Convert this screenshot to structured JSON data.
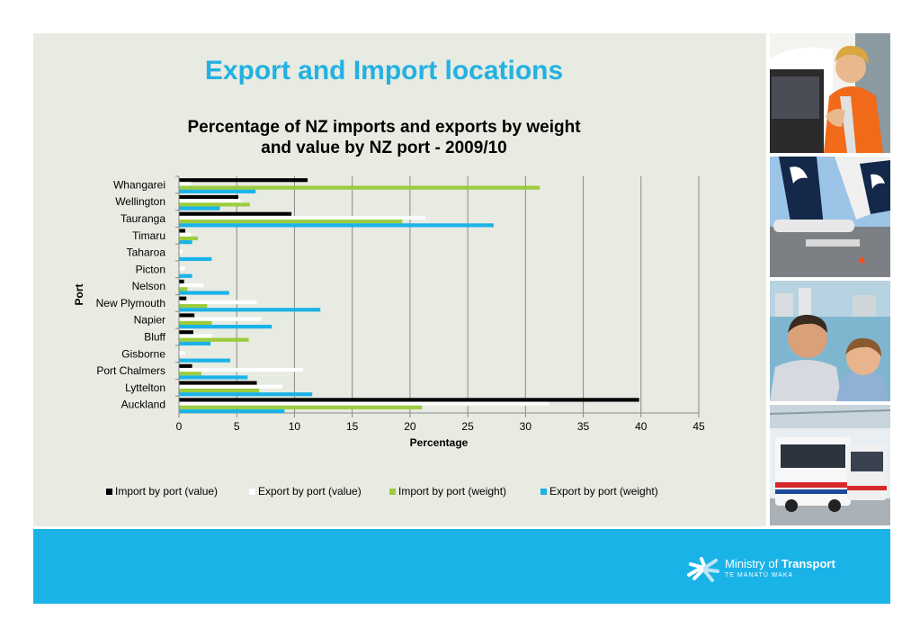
{
  "slide": {
    "title": "Export and Import locations"
  },
  "footer": {
    "logo_prefix": "Ministry of ",
    "logo_strong": "Transport",
    "logo_tagline": "TE MANATŪ WAKA"
  },
  "photos": [
    "worker-photo",
    "aircraft-photo",
    "family-photo",
    "bus-photo"
  ],
  "colors": {
    "title": "#22b1e3",
    "panel": "#e7ebe1",
    "footer": "#1ab3e8"
  },
  "chart_data": {
    "type": "bar",
    "orientation": "horizontal",
    "title": "Percentage of NZ imports and exports by weight and value by NZ port - 2009/10",
    "title_lines": [
      "Percentage of NZ imports and exports by weight",
      "and value by NZ port - 2009/10"
    ],
    "xlabel": "Percentage",
    "ylabel": "Port",
    "xlim": [
      0,
      45
    ],
    "xticks": [
      0,
      5,
      10,
      15,
      20,
      25,
      30,
      35,
      40,
      45
    ],
    "grid": "vertical",
    "legend_position": "bottom",
    "categories": [
      "Whangarei",
      "Wellington",
      "Tauranga",
      "Timaru",
      "Taharoa",
      "Picton",
      "Nelson",
      "New Plymouth",
      "Napier",
      "Bluff",
      "Gisborne",
      "Port Chalmers",
      "Lyttelton",
      "Auckland"
    ],
    "series": [
      {
        "name": "Import by port (value)",
        "color": "#000000",
        "values": [
          11.1,
          5.1,
          9.7,
          0.5,
          0,
          0,
          0.4,
          0.6,
          1.3,
          1.2,
          0,
          1.1,
          6.7,
          39.8
        ]
      },
      {
        "name": "Export by port (value)",
        "color": "#ffffff",
        "values": [
          1.0,
          5.3,
          21.3,
          1.0,
          0.3,
          0.5,
          2.1,
          6.7,
          7.1,
          2.8,
          0.5,
          10.7,
          8.9,
          32.0
        ]
      },
      {
        "name": "Import by port (weight)",
        "color": "#9ccc3c",
        "values": [
          31.2,
          6.1,
          19.3,
          1.6,
          0,
          0,
          0.7,
          2.4,
          2.8,
          6.0,
          0,
          1.9,
          6.9,
          21.0
        ]
      },
      {
        "name": "Export by port (weight)",
        "color": "#1ab3e8",
        "values": [
          6.6,
          3.5,
          27.2,
          1.1,
          2.8,
          1.1,
          4.3,
          12.2,
          8.0,
          2.7,
          4.4,
          5.9,
          11.5,
          9.1
        ]
      }
    ]
  }
}
